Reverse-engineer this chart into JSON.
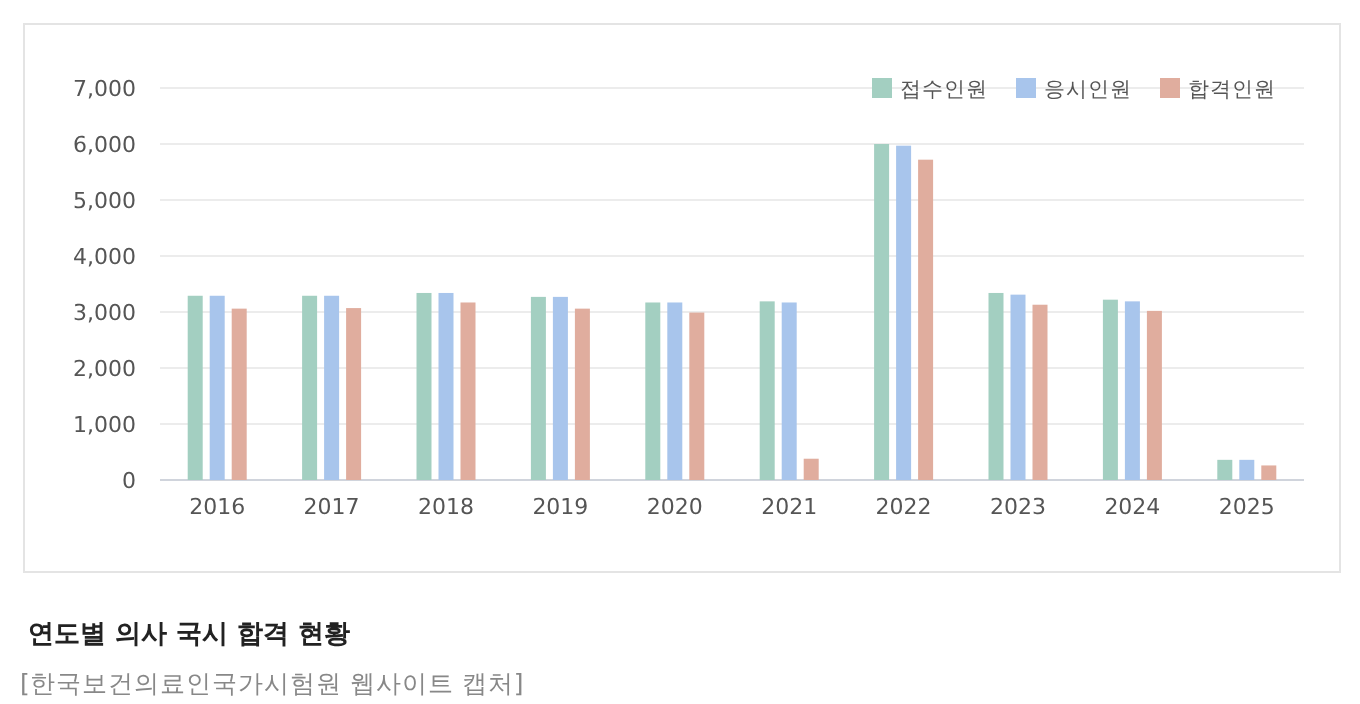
{
  "chart_data": {
    "type": "bar",
    "title": "연도별 의사 국시 합격 현황",
    "annotations": [
      "[한국보건의료인국가시험원 웹사이트 캡처]"
    ],
    "categories": [
      "2016",
      "2017",
      "2018",
      "2019",
      "2020",
      "2021",
      "2022",
      "2023",
      "2024",
      "2025"
    ],
    "series": [
      {
        "name": "접수인원",
        "color": "#a3cfc1",
        "values": [
          3290,
          3290,
          3340,
          3270,
          3170,
          3190,
          6000,
          3340,
          3220,
          360
        ]
      },
      {
        "name": "응시인원",
        "color": "#a8c5ec",
        "values": [
          3290,
          3290,
          3340,
          3270,
          3170,
          3170,
          5970,
          3310,
          3190,
          360
        ]
      },
      {
        "name": "합격인원",
        "color": "#e0ad9e",
        "values": [
          3060,
          3070,
          3170,
          3060,
          2990,
          380,
          5720,
          3130,
          3020,
          260
        ]
      }
    ],
    "ylim": [
      0,
      7000
    ],
    "yticks": [
      {
        "value": 0,
        "label": "0"
      },
      {
        "value": 1000,
        "label": "1,000"
      },
      {
        "value": 2000,
        "label": "2,000"
      },
      {
        "value": 3000,
        "label": "3,000"
      },
      {
        "value": 4000,
        "label": "4,000"
      },
      {
        "value": 5000,
        "label": "5,000"
      },
      {
        "value": 6000,
        "label": "6,000"
      },
      {
        "value": 7000,
        "label": "7,000"
      }
    ],
    "grid": "y",
    "legend": "top right"
  }
}
